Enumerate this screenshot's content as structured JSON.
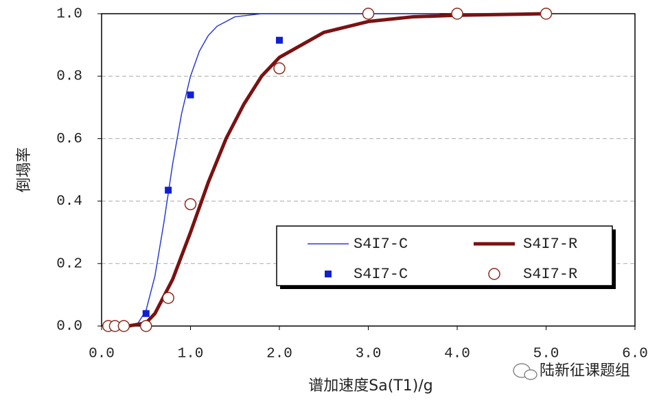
{
  "chart_data": {
    "type": "line",
    "xlabel": "谱加速度Sa(T1)/g",
    "ylabel": "倒塌率",
    "watermark": "陆新征课题组",
    "xlim": [
      0,
      6
    ],
    "ylim": [
      0,
      1
    ],
    "xticks": [
      {
        "value": 0,
        "label": "0.0"
      },
      {
        "value": 1,
        "label": "1.0"
      },
      {
        "value": 2,
        "label": "2.0"
      },
      {
        "value": 3,
        "label": "3.0"
      },
      {
        "value": 4,
        "label": "4.0"
      },
      {
        "value": 5,
        "label": "5.0"
      },
      {
        "value": 6,
        "label": "6.0"
      }
    ],
    "yticks": [
      {
        "value": 0,
        "label": "0.0"
      },
      {
        "value": 0.2,
        "label": "0.2"
      },
      {
        "value": 0.4,
        "label": "0.4"
      },
      {
        "value": 0.6,
        "label": "0.6"
      },
      {
        "value": 0.8,
        "label": "0.8"
      },
      {
        "value": 1,
        "label": "1.0"
      }
    ],
    "grid": true,
    "series": [
      {
        "name": "S4I7-C",
        "kind": "line",
        "color": "#2a3bd0",
        "width": 1.5,
        "x": [
          0.3,
          0.4,
          0.5,
          0.6,
          0.7,
          0.8,
          0.9,
          1.0,
          1.1,
          1.2,
          1.3,
          1.5,
          1.8,
          2.0,
          3.0,
          3.8
        ],
        "values": [
          0,
          0.005,
          0.05,
          0.16,
          0.33,
          0.52,
          0.68,
          0.8,
          0.88,
          0.93,
          0.96,
          0.99,
          1.0,
          1.0,
          1.0,
          1.0
        ]
      },
      {
        "name": "S4I7-R",
        "kind": "line",
        "color": "#7a1212",
        "width": 5,
        "x": [
          0.3,
          0.5,
          0.6,
          0.8,
          1.0,
          1.2,
          1.4,
          1.6,
          1.8,
          2.0,
          2.5,
          3.0,
          3.5,
          4.0,
          5.0
        ],
        "values": [
          0,
          0.01,
          0.04,
          0.15,
          0.3,
          0.46,
          0.6,
          0.71,
          0.8,
          0.86,
          0.94,
          0.975,
          0.99,
          0.995,
          1.0
        ]
      },
      {
        "name": "S4I7-C",
        "kind": "square",
        "color": "#1020d0",
        "x": [
          0.5,
          0.75,
          1.0,
          2.0
        ],
        "values": [
          0.04,
          0.435,
          0.74,
          0.915
        ]
      },
      {
        "name": "S4I7-R",
        "kind": "circle",
        "color": "#8b2a1a",
        "x": [
          0.075,
          0.15,
          0.25,
          0.5,
          0.75,
          1.0,
          2.0,
          3.0,
          4.0,
          5.0
        ],
        "values": [
          0,
          0,
          0,
          0,
          0.09,
          0.39,
          0.825,
          1.0,
          1.0,
          1.0
        ]
      }
    ]
  }
}
